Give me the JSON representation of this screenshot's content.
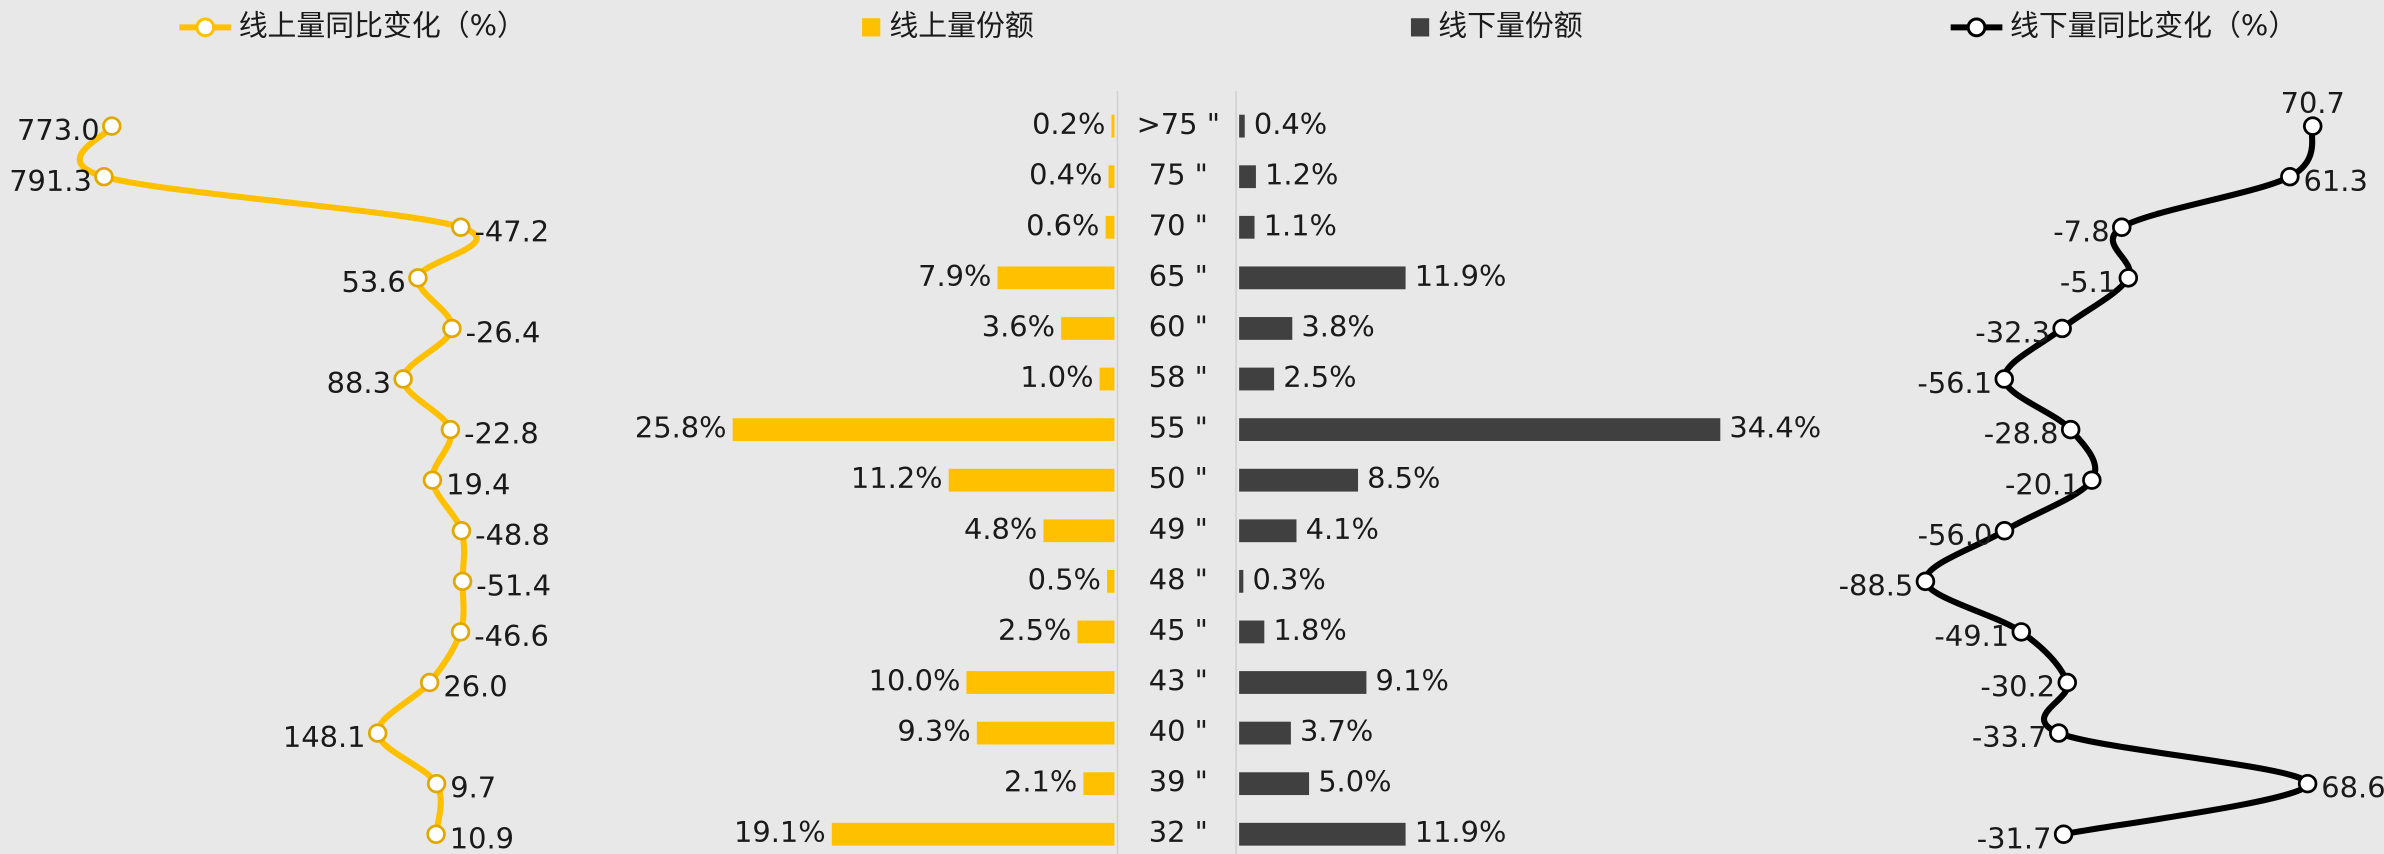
{
  "chart_data": {
    "type": "combo",
    "categories": [
      ">75 \"",
      "75 \"",
      "70 \"",
      "65 \"",
      "60 \"",
      "58 \"",
      "55 \"",
      "50 \"",
      "49 \"",
      "48 \"",
      "45 \"",
      "43 \"",
      "40 \"",
      "39 \"",
      "32 \""
    ],
    "series": [
      {
        "name": "线上量同比变化（%）",
        "type": "line",
        "color": "#FFC000",
        "x_reversed": true,
        "xlim": [
          -465,
          1000
        ],
        "values": [
          773.0,
          791.3,
          -47.2,
          53.6,
          -26.4,
          88.3,
          -22.8,
          19.4,
          -48.8,
          -51.4,
          -46.6,
          26.0,
          148.1,
          9.7,
          10.9
        ],
        "value_labels": [
          "773.0",
          "791.3",
          "-47.2",
          "53.6",
          "-26.4",
          "88.3",
          "-22.8",
          "19.4",
          "-48.8",
          "-51.4",
          "-46.6",
          "26.0",
          "148.1",
          "9.7",
          "10.9"
        ]
      },
      {
        "name": "线上量份额",
        "type": "bar",
        "color": "#FFC000",
        "x_reversed": true,
        "xlim": [
          0,
          30
        ],
        "values": [
          0.2,
          0.4,
          0.6,
          7.9,
          3.6,
          1.0,
          25.8,
          11.2,
          4.8,
          0.5,
          2.5,
          10.0,
          9.3,
          2.1,
          19.1
        ],
        "value_labels": [
          "0.2%",
          "0.4%",
          "0.6%",
          "7.9%",
          "3.6%",
          "1.0%",
          "25.8%",
          "11.2%",
          "4.8%",
          "0.5%",
          "2.5%",
          "10.0%",
          "9.3%",
          "2.1%",
          "19.1%"
        ]
      },
      {
        "name": "线下量份额",
        "type": "bar",
        "color": "#404040",
        "x_reversed": false,
        "xlim": [
          0,
          40
        ],
        "values": [
          0.4,
          1.2,
          1.1,
          11.9,
          3.8,
          2.5,
          34.4,
          8.5,
          4.1,
          0.3,
          1.8,
          9.1,
          3.7,
          5.0,
          11.9
        ],
        "value_labels": [
          "0.4%",
          "1.2%",
          "1.1%",
          "11.9%",
          "3.8%",
          "2.5%",
          "34.4%",
          "8.5%",
          "4.1%",
          "0.3%",
          "1.8%",
          "9.1%",
          "3.7%",
          "5.0%",
          "11.9%"
        ]
      },
      {
        "name": "线下量同比变化（%）",
        "type": "line",
        "color": "#000000",
        "x_reversed": false,
        "xlim": [
          -130,
          95
        ],
        "values": [
          70.7,
          61.3,
          -7.8,
          -5.1,
          -32.3,
          -56.1,
          -28.8,
          -20.1,
          -56.0,
          -88.5,
          -49.1,
          -30.2,
          -33.7,
          68.6,
          -31.7
        ],
        "value_labels": [
          "70.7",
          "61.3",
          "-7.8",
          "-5.1",
          "-32.3",
          "-56.1",
          "-28.8",
          "-20.1",
          "-56.0",
          "-88.5",
          "-49.1",
          "-30.2",
          "-33.7",
          "68.6",
          "-31.7"
        ]
      }
    ]
  }
}
